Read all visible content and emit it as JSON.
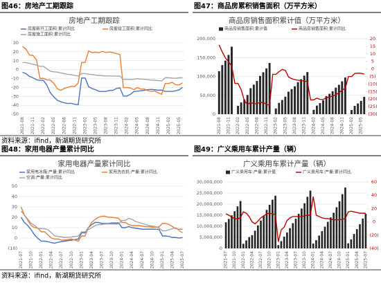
{
  "sources": [
    "资料来源：ifind，新湖期货研究所",
    "资料来源：ifind，新湖期货研究所"
  ],
  "chart_data": [
    {
      "type": "line",
      "figure_label": "图46：房地产工期跟踪",
      "title": "房地产工期跟踪",
      "grid": true,
      "categories": [
        "2021-08",
        null,
        null,
        "2021-11",
        null,
        null,
        "2022-02",
        null,
        null,
        "2022-05",
        null,
        null,
        "2022-08",
        null,
        null,
        "2022-11",
        null,
        null,
        "2023-02",
        null,
        null,
        "2023-05",
        null,
        null,
        "2023-08",
        null,
        null,
        "2023-11",
        null,
        null,
        "2024-02",
        null,
        null,
        "2024-05",
        null,
        null,
        "2024-08",
        null,
        null,
        "2024-11",
        null,
        null,
        "2025-02",
        null,
        null,
        "2025-05",
        null
      ],
      "ylim": [
        -50,
        30
      ],
      "yticks": [
        30,
        20,
        10,
        0,
        -10,
        -20,
        -30,
        -40,
        -50
      ],
      "series": [
        {
          "name": "房屋新开工面积:累计同比",
          "color": "#4472c4",
          "values": [
            -3,
            -4.5,
            -7.7,
            -9,
            -11.4,
            -12,
            -12,
            -17.5,
            -26,
            -30.6,
            -34.4,
            -36.1,
            -37.2,
            -38,
            -37.8,
            -38.9,
            -39.4,
            -9.4,
            -9.4,
            -19.2,
            -21.2,
            -22.6,
            -24.3,
            -24.5,
            -24.4,
            -23.4,
            -23.2,
            -21.2,
            -20.4,
            -29.7,
            -29.7,
            -27.8,
            -24.6,
            -24.2,
            -23.7,
            -23.2,
            -22.5,
            -22.2,
            -22.6,
            -23,
            -23,
            -24.4,
            -24.4,
            -24.4,
            -23.8,
            -22.8,
            -20
          ]
        },
        {
          "name": "房屋竣工面积:累计同比",
          "color": "#ed7d31",
          "values": [
            26,
            23,
            16.3,
            16,
            11.2,
            -9.8,
            -9.8,
            -11.5,
            -11.9,
            -15.3,
            -21.5,
            -23.3,
            -21.1,
            -19.9,
            -18.7,
            -19,
            -15,
            8,
            8,
            21,
            19,
            19.6,
            19,
            20.5,
            19.2,
            19.8,
            19.2,
            17.9,
            17,
            -20.2,
            -20.2,
            -20.7,
            -22.5,
            -20.1,
            -21.8,
            -21.7,
            -23.6,
            -24.4,
            -23.9,
            -26,
            -27.7,
            -15.6,
            -15.6,
            -14.3,
            -16.9,
            -17.3,
            -14.8
          ]
        },
        {
          "name": "房屋施工面积:累计同比",
          "color": "#a5a5a5",
          "values": [
            7.9,
            7.9,
            7,
            6,
            5.2,
            3.7,
            3.7,
            1,
            -1.8,
            -2.5,
            -2.8,
            -3.7,
            -4.5,
            -5.3,
            -5.7,
            -6.5,
            -7.2,
            -4.4,
            -4.4,
            -5.2,
            -5.6,
            -6.2,
            -6.6,
            -6.8,
            -7.1,
            -7.1,
            -7.2,
            -7.2,
            -7.2,
            -11,
            -11,
            -11.1,
            -10.8,
            -10.1,
            -10.6,
            -10.8,
            -11.2,
            -11.8,
            -12,
            -12.3,
            -12.7,
            -9.1,
            -9.1,
            -9.5,
            -9.7,
            -9.2,
            -9.1
          ]
        }
      ]
    },
    {
      "type": "combo",
      "figure_label": "图47：商品房累积销售面积（万平方米）",
      "title": "商品房销售面积累计值（万平方米）",
      "grid": true,
      "categories": [
        "2021-08",
        null,
        null,
        "2021-11",
        null,
        null,
        "2022-02",
        null,
        null,
        "2022-05",
        null,
        null,
        "2022-08",
        null,
        null,
        "2022-11",
        null,
        null,
        "2023-02",
        null,
        null,
        "2023-05",
        null,
        null,
        "2023-08",
        null,
        null,
        "2023-11",
        null,
        null,
        "2024-02",
        null,
        null,
        "2024-05",
        null,
        null,
        "2024-08",
        null,
        null,
        "2024-11",
        null,
        null,
        "2025-02",
        null,
        null,
        "2025-05",
        null
      ],
      "ylim": [
        0,
        200000
      ],
      "yticks": [
        0,
        {
          "value": 50000,
          "label": "50,000"
        },
        {
          "value": 100000,
          "label": "100,000"
        },
        {
          "value": 150000,
          "label": "150,000"
        },
        {
          "value": 200000,
          "label": "200,000"
        }
      ],
      "y2lim": [
        -30,
        20
      ],
      "y2ticks": [
        20,
        15,
        10,
        5,
        0,
        {
          "value": -5,
          "label": "(5)"
        },
        {
          "value": -10,
          "label": "(10)"
        },
        {
          "value": -15,
          "label": "(15)"
        },
        {
          "value": -20,
          "label": "(20)"
        },
        {
          "value": -25,
          "label": "(25)"
        },
        {
          "value": -30,
          "label": "(30)"
        }
      ],
      "series": [
        {
          "name": "商品房销售面积:累计值",
          "color": "#262626",
          "values": [
            114000,
            130000,
            142000,
            157000,
            179000,
            null,
            22000,
            31000,
            39000,
            50700,
            68900,
            78200,
            87900,
            101400,
            111200,
            121300,
            135800,
            null,
            15100,
            29900,
            37600,
            46400,
            59500,
            66600,
            73900,
            84800,
            92600,
            102100,
            111700,
            null,
            11400,
            22700,
            29300,
            36600,
            47900,
            54100,
            60900,
            70300,
            78000,
            87100,
            97400,
            null,
            10900,
            22000,
            28300,
            35200,
            45900
          ]
        },
        {
          "name": "商品房销售面积:累计同比",
          "color": "#c00000",
          "axis": "y2",
          "values": [
            15.9,
            11.3,
            7.3,
            4.8,
            1.9,
            -9.6,
            -9.6,
            -13.8,
            -20.9,
            -23.6,
            -22.2,
            -23.1,
            -23,
            -22.2,
            -22.3,
            -23.3,
            -24.3,
            -3.6,
            -3.6,
            -1.8,
            -0.4,
            -0.9,
            -5.3,
            -6.5,
            -7.1,
            -7.5,
            -7.8,
            -8,
            -8.5,
            -20.5,
            -20.5,
            -19.4,
            -20.2,
            -20.3,
            -19,
            -18.6,
            -18,
            -17.1,
            -15.8,
            -14,
            -12.9,
            -5.1,
            -5.1,
            -3,
            -2.8,
            -2.9,
            -3.5
          ]
        }
      ]
    },
    {
      "type": "line",
      "figure_label": "图48：家用电器产量累计同比",
      "title": "家用电器产量累计同比",
      "grid": true,
      "categories": [
        "2021-07",
        null,
        null,
        "2021-10",
        null,
        null,
        "2022-01",
        null,
        null,
        "2022-04",
        null,
        null,
        "2022-07",
        null,
        null,
        "2022-10",
        null,
        null,
        "2023-01",
        null,
        null,
        "2023-04",
        null,
        null,
        "2023-07",
        null,
        null,
        "2023-10",
        null,
        null,
        "2024-01",
        null,
        null,
        "2024-04",
        null,
        null,
        "2024-07",
        null,
        null,
        "2024-10",
        null,
        null,
        "2025-01",
        null,
        null,
        "2025-04",
        null,
        null,
        "2025-07"
      ],
      "ylim": [
        -10,
        50
      ],
      "yticks": [
        50,
        40,
        30,
        20,
        10,
        0,
        {
          "value": -10,
          "label": "(10)"
        }
      ],
      "series": [
        {
          "name": "家用电冰箱:产量:累计同比",
          "color": "#4472c4",
          "values": [
            20,
            15,
            12,
            8,
            3,
            -0.3,
            -3,
            -3,
            -3.5,
            -4.5,
            -5,
            -4,
            -3.5,
            -3,
            -2.5,
            -2,
            -1.5,
            -1,
            5,
            5,
            10,
            13,
            15,
            15,
            14,
            14,
            14,
            14.5,
            14.5,
            14.5,
            10,
            10,
            11,
            10,
            9.5,
            9,
            8.5,
            8.5,
            8.5,
            8.5,
            8.5,
            8.3,
            2,
            2,
            1.5,
            0.5,
            0.5,
            0,
            0.5
          ]
        },
        {
          "name": "家用洗衣机:产量:累计同比",
          "color": "#ed7d31",
          "values": [
            30,
            22,
            17,
            12,
            10,
            9.5,
            6,
            6,
            3,
            0,
            -1,
            -1,
            -2,
            -2,
            -1.5,
            -1,
            -2,
            -3,
            2,
            2,
            10,
            15,
            18,
            20,
            21,
            21,
            20,
            20,
            19.5,
            19,
            15,
            15,
            13,
            12,
            12,
            12,
            11.5,
            11,
            11,
            10.5,
            10.5,
            10.8,
            14,
            14,
            13,
            11,
            9,
            8.5,
            8.5
          ]
        },
        {
          "name": "空调:产量:累计同比",
          "color": "#a5a5a5",
          "values": [
            26,
            22,
            18,
            14,
            12,
            9.4,
            9,
            9,
            8,
            5,
            2,
            1.5,
            1,
            0.5,
            0.8,
            1,
            1.5,
            1.8,
            6,
            6,
            8,
            10,
            12,
            13,
            13,
            13.5,
            13.5,
            13.6,
            13.5,
            13.5,
            17,
            17,
            19,
            18,
            16,
            15,
            14,
            13,
            12,
            11.5,
            11,
            9.7,
            7,
            7,
            8,
            9,
            10,
            7,
            5
          ]
        }
      ]
    },
    {
      "type": "combo",
      "figure_label": "图49：广义乘用车累计产量（辆）",
      "title": "广义乘用车累计产量（辆）",
      "grid": true,
      "categories": [
        "2021-07",
        null,
        null,
        "2021-10",
        null,
        null,
        "2022-01",
        null,
        null,
        "2022-04",
        null,
        null,
        "2022-07",
        null,
        null,
        "2022-10",
        null,
        null,
        "2023-01",
        null,
        null,
        "2023-04",
        null,
        null,
        "2023-07",
        null,
        null,
        "2023-10",
        null,
        null,
        "2024-01",
        null,
        null,
        "2024-04",
        null,
        null,
        "2024-07",
        null,
        null,
        "2024-10",
        null,
        null,
        "2025-01",
        null,
        null,
        "2025-04",
        null,
        null,
        "2025-07"
      ],
      "ylim": [
        0,
        30000000
      ],
      "yticks": [
        0,
        {
          "value": 5000000,
          "label": "5,000,000"
        },
        {
          "value": 10000000,
          "label": "10,000,000"
        },
        {
          "value": 15000000,
          "label": "15,000,000"
        },
        {
          "value": 20000000,
          "label": "20,000,000"
        },
        {
          "value": 25000000,
          "label": "25,000,000"
        },
        {
          "value": 30000000,
          "label": "30,000,000"
        }
      ],
      "y2lim": [
        -40,
        60
      ],
      "y2ticks": [
        60,
        40,
        20,
        0,
        {
          "value": -20,
          "label": "(20)"
        },
        {
          "value": -40,
          "label": "(40)"
        }
      ],
      "series": [
        {
          "name": "广义乘用车:产量:累计值",
          "color": "#262626",
          "values": [
            11800000,
            13300000,
            14900000,
            16800000,
            19000000,
            21400000,
            2100000,
            3600000,
            5100000,
            6000000,
            8000000,
            10400000,
            12600000,
            14800000,
            17400000,
            19700000,
            22000000,
            23800000,
            1500000,
            3300000,
            5300000,
            7200000,
            9200000,
            11400000,
            13400000,
            15600000,
            18000000,
            20400000,
            23300000,
            26100000,
            2200000,
            3700000,
            5800000,
            7800000,
            9800000,
            12000000,
            14000000,
            16100000,
            18600000,
            21300000,
            24500000,
            27500000,
            2300000,
            4100000,
            6500000,
            8700000,
            10900000,
            13500000,
            15600000
          ]
        },
        {
          "name": "广义乘用车:产量:累计同比",
          "color": "#c00000",
          "axis": "y2",
          "values": [
            12,
            10,
            7,
            5,
            4,
            6.5,
            15,
            13,
            8,
            0,
            -3,
            1,
            6,
            9,
            12,
            13,
            12,
            11,
            -30,
            -12,
            -8,
            2,
            6,
            8,
            8,
            8,
            8,
            9,
            10,
            10,
            38,
            10,
            8,
            6,
            5,
            5,
            4,
            3,
            3,
            3,
            4,
            5,
            15,
            16,
            15,
            14,
            13,
            13,
            13
          ]
        }
      ]
    }
  ]
}
